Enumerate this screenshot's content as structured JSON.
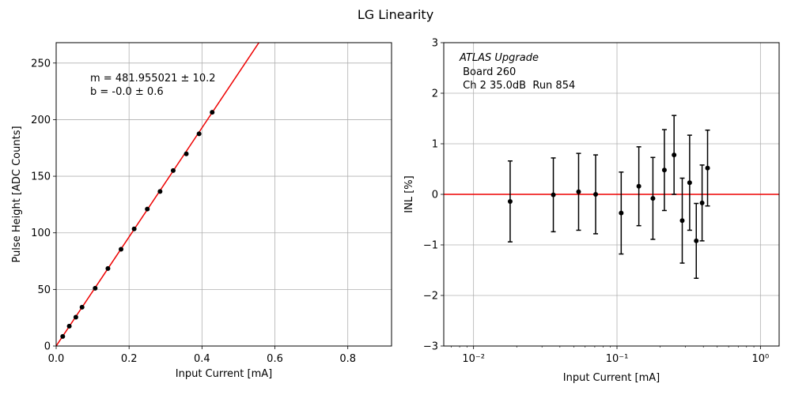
{
  "figure": {
    "title": "LG Linearity"
  },
  "chart_data": [
    {
      "type": "scatter",
      "xlabel": "Input Current [mA]",
      "ylabel": "Pulse Height [ADC Counts]",
      "xlim": [
        0,
        0.92
      ],
      "ylim": [
        0,
        268
      ],
      "xscale": "linear",
      "xticks": [
        0.0,
        0.2,
        0.4,
        0.6,
        0.8
      ],
      "xtick_labels": [
        "0.0",
        "0.2",
        "0.4",
        "0.6",
        "0.8"
      ],
      "yticks": [
        0,
        50,
        100,
        150,
        200,
        250
      ],
      "ytick_labels": [
        "0",
        "50",
        "100",
        "150",
        "200",
        "250"
      ],
      "grid": true,
      "annotation_lines": [
        "m = 481.955021 ± 10.2",
        "b = -0.0 ± 0.6"
      ],
      "fit_line": {
        "slope": 481.955021,
        "intercept": 0.0,
        "color": "#ee0000"
      },
      "series": [
        {
          "x": [
            0.018,
            0.036,
            0.054,
            0.071,
            0.107,
            0.142,
            0.178,
            0.214,
            0.25,
            0.285,
            0.321,
            0.357,
            0.392,
            0.428
          ],
          "y": [
            8.5,
            17.5,
            25.5,
            34.3,
            51,
            68.5,
            85.5,
            103.5,
            121,
            136.5,
            155,
            169.8,
            187.5,
            206.5
          ],
          "color": "#000000"
        }
      ]
    },
    {
      "type": "scatter",
      "xlabel": "Input Current [mA]",
      "ylabel": "INL [%]",
      "xlim": [
        0.0062,
        1.35
      ],
      "ylim": [
        -3,
        3
      ],
      "xscale": "log",
      "xticks": [
        0.01,
        0.1,
        1
      ],
      "xtick_labels": [
        "10⁻²",
        "10⁻¹",
        "10⁰"
      ],
      "yticks": [
        -3,
        -2,
        -1,
        0,
        1,
        2,
        3
      ],
      "ytick_labels": [
        "−3",
        "−2",
        "−1",
        "0",
        "1",
        "2",
        "3"
      ],
      "grid": true,
      "annotation_lines": [
        "ATLAS Upgrade",
        " Board 260",
        " Ch 2 35.0dB  Run 854"
      ],
      "reference_line": {
        "y": 0,
        "color": "#ee0000"
      },
      "series": [
        {
          "x": [
            0.018,
            0.036,
            0.054,
            0.071,
            0.107,
            0.142,
            0.178,
            0.214,
            0.25,
            0.285,
            0.321,
            0.357,
            0.392,
            0.428
          ],
          "y": [
            -0.14,
            -0.01,
            0.05,
            0.0,
            -0.37,
            0.16,
            -0.08,
            0.48,
            0.78,
            -0.52,
            0.23,
            -0.92,
            -0.17,
            0.52
          ],
          "yerr": [
            0.8,
            0.73,
            0.76,
            0.78,
            0.81,
            0.78,
            0.81,
            0.8,
            0.78,
            0.84,
            0.94,
            0.74,
            0.75,
            0.75
          ],
          "color": "#000000"
        }
      ]
    }
  ]
}
